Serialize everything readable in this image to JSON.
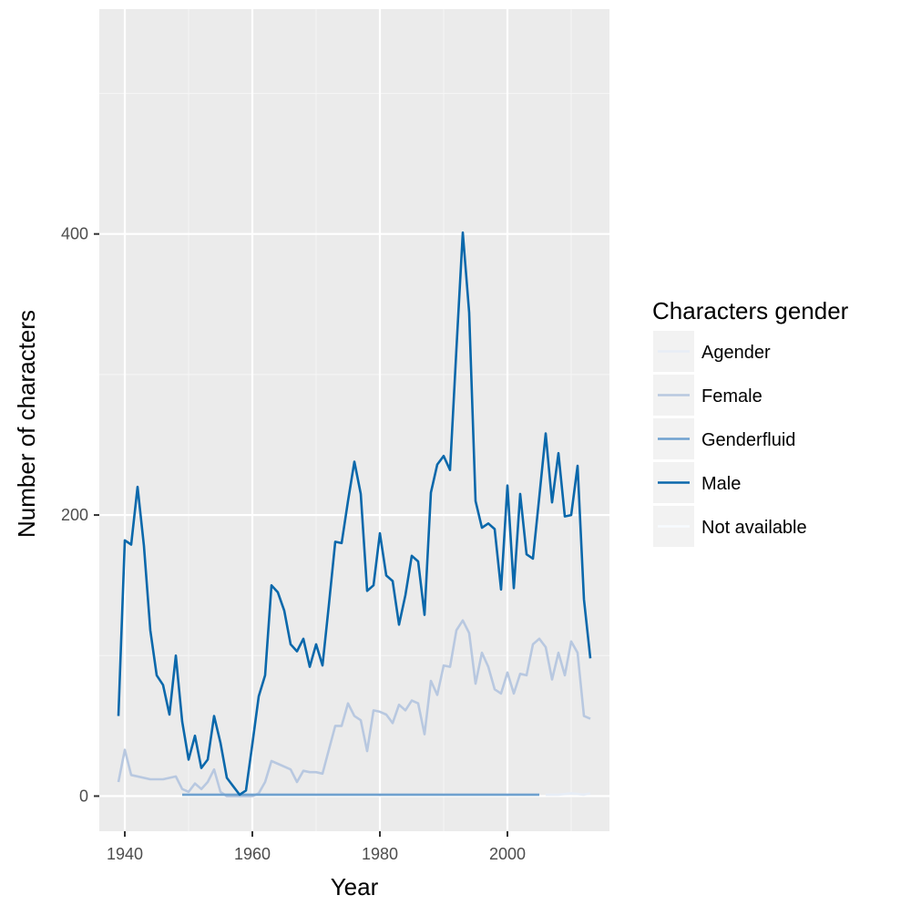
{
  "chart_data": {
    "type": "line",
    "title": "",
    "xlabel": "Year",
    "ylabel": "Number of characters",
    "xlim": [
      1936,
      2016
    ],
    "ylim": [
      -25,
      560
    ],
    "x_ticks": [
      1940,
      1960,
      1980,
      2000
    ],
    "y_ticks": [
      0,
      200,
      400
    ],
    "grid": true,
    "legend": {
      "title": "Characters gender",
      "position": "right",
      "entries": [
        "Agender",
        "Female",
        "Genderfluid",
        "Male",
        "Not available"
      ]
    },
    "colors": {
      "panel_background": "#ebebeb",
      "grid_major": "#ffffff",
      "grid_minor": "#f5f5f5",
      "legend_key_background": "#f2f2f2"
    },
    "series": [
      {
        "name": "Agender",
        "color": "#e7edf6",
        "points": [
          [
            2006,
            1
          ],
          [
            2008,
            1
          ],
          [
            2010,
            2
          ],
          [
            2012,
            1
          ],
          [
            2013,
            2
          ]
        ]
      },
      {
        "name": "Female",
        "color": "#b8c8e0",
        "points": [
          [
            1939,
            10
          ],
          [
            1940,
            33
          ],
          [
            1941,
            15
          ],
          [
            1944,
            12
          ],
          [
            1946,
            12
          ],
          [
            1948,
            14
          ],
          [
            1949,
            5
          ],
          [
            1950,
            3
          ],
          [
            1951,
            9
          ],
          [
            1952,
            5
          ],
          [
            1953,
            10
          ],
          [
            1954,
            19
          ],
          [
            1955,
            3
          ],
          [
            1956,
            0
          ],
          [
            1957,
            0
          ],
          [
            1958,
            0
          ],
          [
            1959,
            0
          ],
          [
            1960,
            0
          ],
          [
            1961,
            2
          ],
          [
            1962,
            10
          ],
          [
            1963,
            25
          ],
          [
            1964,
            23
          ],
          [
            1965,
            21
          ],
          [
            1966,
            19
          ],
          [
            1967,
            10
          ],
          [
            1968,
            18
          ],
          [
            1969,
            17
          ],
          [
            1970,
            17
          ],
          [
            1971,
            16
          ],
          [
            1972,
            33
          ],
          [
            1973,
            50
          ],
          [
            1974,
            50
          ],
          [
            1975,
            66
          ],
          [
            1976,
            57
          ],
          [
            1977,
            54
          ],
          [
            1978,
            32
          ],
          [
            1979,
            61
          ],
          [
            1980,
            60
          ],
          [
            1981,
            58
          ],
          [
            1982,
            52
          ],
          [
            1983,
            65
          ],
          [
            1984,
            61
          ],
          [
            1985,
            68
          ],
          [
            1986,
            66
          ],
          [
            1987,
            44
          ],
          [
            1988,
            82
          ],
          [
            1989,
            72
          ],
          [
            1990,
            93
          ],
          [
            1991,
            92
          ],
          [
            1992,
            118
          ],
          [
            1993,
            125
          ],
          [
            1994,
            116
          ],
          [
            1995,
            80
          ],
          [
            1996,
            102
          ],
          [
            1997,
            92
          ],
          [
            1998,
            76
          ],
          [
            1999,
            73
          ],
          [
            2000,
            88
          ],
          [
            2001,
            73
          ],
          [
            2002,
            87
          ],
          [
            2003,
            86
          ],
          [
            2004,
            108
          ],
          [
            2005,
            112
          ],
          [
            2006,
            106
          ],
          [
            2007,
            83
          ],
          [
            2008,
            102
          ],
          [
            2009,
            86
          ],
          [
            2010,
            110
          ],
          [
            2011,
            102
          ],
          [
            2012,
            57
          ],
          [
            2013,
            55
          ]
        ]
      },
      {
        "name": "Genderfluid",
        "color": "#6fa1cf",
        "points": [
          [
            1949,
            1
          ],
          [
            1960,
            1
          ],
          [
            1980,
            1
          ],
          [
            1993,
            1
          ],
          [
            2000,
            1
          ],
          [
            2005,
            1
          ]
        ]
      },
      {
        "name": "Male",
        "color": "#0a68ab",
        "points": [
          [
            1939,
            57
          ],
          [
            1940,
            182
          ],
          [
            1941,
            179
          ],
          [
            1942,
            220
          ],
          [
            1943,
            178
          ],
          [
            1944,
            118
          ],
          [
            1945,
            86
          ],
          [
            1946,
            79
          ],
          [
            1947,
            58
          ],
          [
            1948,
            100
          ],
          [
            1949,
            53
          ],
          [
            1950,
            26
          ],
          [
            1951,
            43
          ],
          [
            1952,
            20
          ],
          [
            1953,
            26
          ],
          [
            1954,
            57
          ],
          [
            1955,
            38
          ],
          [
            1956,
            13
          ],
          [
            1957,
            7
          ],
          [
            1958,
            1
          ],
          [
            1959,
            4
          ],
          [
            1960,
            37
          ],
          [
            1961,
            71
          ],
          [
            1962,
            86
          ],
          [
            1963,
            150
          ],
          [
            1964,
            145
          ],
          [
            1965,
            132
          ],
          [
            1966,
            108
          ],
          [
            1967,
            103
          ],
          [
            1968,
            112
          ],
          [
            1969,
            92
          ],
          [
            1970,
            108
          ],
          [
            1971,
            93
          ],
          [
            1972,
            136
          ],
          [
            1973,
            181
          ],
          [
            1974,
            180
          ],
          [
            1975,
            210
          ],
          [
            1976,
            238
          ],
          [
            1977,
            215
          ],
          [
            1978,
            146
          ],
          [
            1979,
            150
          ],
          [
            1980,
            187
          ],
          [
            1981,
            157
          ],
          [
            1982,
            153
          ],
          [
            1983,
            122
          ],
          [
            1984,
            143
          ],
          [
            1985,
            171
          ],
          [
            1986,
            167
          ],
          [
            1987,
            129
          ],
          [
            1988,
            216
          ],
          [
            1989,
            236
          ],
          [
            1990,
            242
          ],
          [
            1991,
            232
          ],
          [
            1992,
            318
          ],
          [
            1993,
            401
          ],
          [
            1994,
            344
          ],
          [
            1995,
            210
          ],
          [
            1996,
            191
          ],
          [
            1997,
            194
          ],
          [
            1998,
            190
          ],
          [
            1999,
            147
          ],
          [
            2000,
            221
          ],
          [
            2001,
            148
          ],
          [
            2002,
            215
          ],
          [
            2003,
            172
          ],
          [
            2004,
            169
          ],
          [
            2005,
            213
          ],
          [
            2006,
            258
          ],
          [
            2007,
            209
          ],
          [
            2008,
            244
          ],
          [
            2009,
            199
          ],
          [
            2010,
            200
          ],
          [
            2011,
            235
          ],
          [
            2012,
            140
          ],
          [
            2013,
            98
          ]
        ]
      },
      {
        "name": "Not available",
        "color": "#f7fbff",
        "points": []
      }
    ]
  }
}
